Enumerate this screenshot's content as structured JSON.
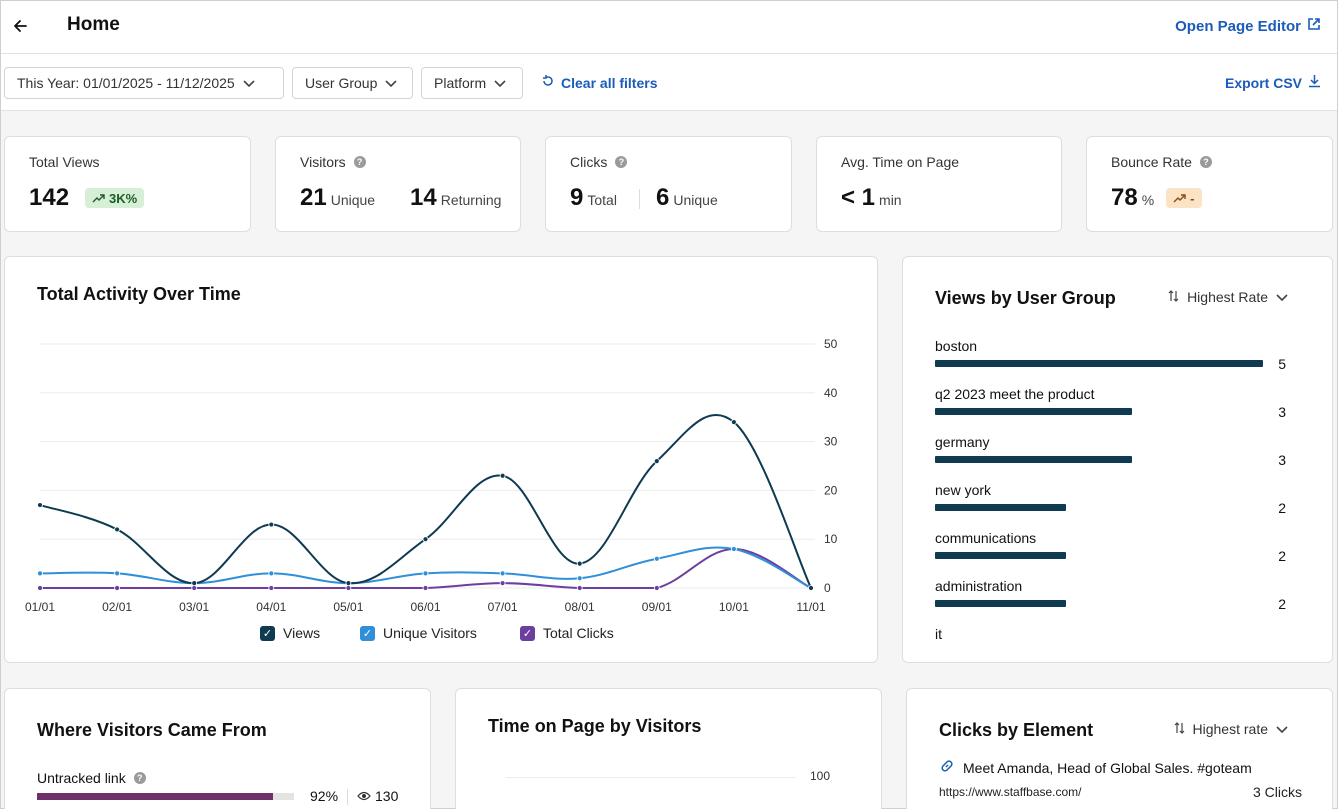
{
  "header": {
    "title": "Home",
    "open_editor_label": "Open Page Editor"
  },
  "filters": {
    "date_range": "This Year: 01/01/2025 - 11/12/2025",
    "user_group": "User Group",
    "platform": "Platform",
    "clear_label": "Clear all filters",
    "export_label": "Export CSV"
  },
  "kpis": {
    "total_views": {
      "label": "Total Views",
      "value": "142",
      "trend": "3K%"
    },
    "visitors": {
      "label": "Visitors",
      "unique_value": "21",
      "unique_label": "Unique",
      "returning_value": "14",
      "returning_label": "Returning"
    },
    "clicks": {
      "label": "Clicks",
      "total_value": "9",
      "total_label": "Total",
      "unique_value": "6",
      "unique_label": "Unique"
    },
    "avg_time": {
      "label": "Avg. Time on Page",
      "value": "< 1",
      "unit": "min"
    },
    "bounce": {
      "label": "Bounce Rate",
      "value": "78",
      "unit": "%",
      "trend": "-"
    }
  },
  "activity": {
    "title": "Total Activity Over Time",
    "legend": [
      "Views",
      "Unique Visitors",
      "Total Clicks"
    ]
  },
  "user_groups": {
    "title": "Views by User Group",
    "sort_label": "Highest Rate",
    "items": [
      {
        "label": "boston",
        "value": "5",
        "count": 5
      },
      {
        "label": "q2 2023 meet the product",
        "value": "3",
        "count": 3
      },
      {
        "label": "germany",
        "value": "3",
        "count": 3
      },
      {
        "label": "new york",
        "value": "2",
        "count": 2
      },
      {
        "label": "communications",
        "value": "2",
        "count": 2
      },
      {
        "label": "administration",
        "value": "2",
        "count": 2
      },
      {
        "label": "it"
      }
    ]
  },
  "sources": {
    "title": "Where Visitors Came From",
    "items": [
      {
        "label": "Untracked link",
        "percent": "92%",
        "views": "130",
        "fraction": 0.92
      }
    ]
  },
  "time_on_page": {
    "title": "Time on Page by Visitors",
    "axis_top_label": "100"
  },
  "clicks_by_element": {
    "title": "Clicks by Element",
    "sort_label": "Highest rate",
    "items": [
      {
        "title": "Meet Amanda, Head of Global Sales. #goteam",
        "url": "https://www.staffbase.com/",
        "clicks": "3 Clicks"
      }
    ]
  },
  "colors": {
    "views": "#0f3a52",
    "unique_visitors": "#2f8fd8",
    "total_clicks": "#6b3fa0",
    "link": "#1a5cb8",
    "source_bar": "#6e2f6a"
  },
  "chart_data": {
    "type": "line",
    "categories": [
      "01/01",
      "02/01",
      "03/01",
      "04/01",
      "05/01",
      "06/01",
      "07/01",
      "08/01",
      "09/01",
      "10/01",
      "11/01"
    ],
    "ylim": [
      0,
      50
    ],
    "y_ticks": [
      "0",
      "10",
      "20",
      "30",
      "40",
      "50"
    ],
    "grid": true,
    "legend_position": "bottom",
    "series": [
      {
        "name": "Views",
        "values": [
          17,
          12,
          1,
          13,
          1,
          10,
          23,
          5,
          26,
          34,
          0
        ]
      },
      {
        "name": "Unique Visitors",
        "values": [
          3,
          3,
          1,
          3,
          1,
          3,
          3,
          2,
          6,
          8,
          0
        ]
      },
      {
        "name": "Total Clicks",
        "values": [
          0,
          0,
          0,
          0,
          0,
          0,
          1,
          0,
          0,
          8,
          0
        ]
      }
    ]
  }
}
